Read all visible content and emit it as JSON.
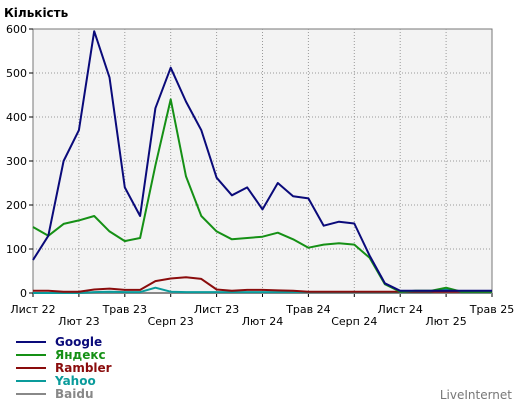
{
  "chart_data": {
    "type": "line",
    "ylabel": "Кількість",
    "ylim": [
      0,
      600
    ],
    "yticks": [
      0,
      100,
      200,
      300,
      400,
      500,
      600
    ],
    "grid": true,
    "legend_position": "bottom-left",
    "x_tick_labels": [
      {
        "label": "Лист 22",
        "index": 0
      },
      {
        "label": "Лют 23",
        "index": 3
      },
      {
        "label": "Трав 23",
        "index": 6
      },
      {
        "label": "Серп 23",
        "index": 9
      },
      {
        "label": "Лист 23",
        "index": 12
      },
      {
        "label": "Лют 24",
        "index": 15
      },
      {
        "label": "Трав 24",
        "index": 18
      },
      {
        "label": "Серп 24",
        "index": 21
      },
      {
        "label": "Лист 24",
        "index": 24
      },
      {
        "label": "Лют 25",
        "index": 27
      },
      {
        "label": "Трав 25",
        "index": 30
      }
    ],
    "series": [
      {
        "name": "Google",
        "color": "#0a0a7a",
        "values": [
          75,
          130,
          300,
          370,
          595,
          490,
          240,
          175,
          420,
          512,
          435,
          370,
          262,
          222,
          240,
          190,
          250,
          220,
          215,
          153,
          162,
          158,
          85,
          22,
          5,
          5,
          5,
          5,
          5,
          5,
          5
        ]
      },
      {
        "name": "Яндекс",
        "color": "#159015",
        "values": [
          150,
          130,
          157,
          165,
          175,
          140,
          118,
          125,
          290,
          440,
          265,
          175,
          140,
          122,
          125,
          128,
          137,
          122,
          103,
          110,
          113,
          110,
          80,
          20,
          3,
          5,
          5,
          12,
          3,
          3,
          3
        ]
      },
      {
        "name": "Rambler",
        "color": "#8a0c0c",
        "values": [
          5,
          5,
          3,
          3,
          8,
          10,
          7,
          7,
          27,
          33,
          36,
          32,
          8,
          5,
          7,
          7,
          6,
          5,
          3,
          3,
          3,
          3,
          3,
          3,
          3,
          3,
          3,
          3,
          3,
          3,
          3
        ]
      },
      {
        "name": "Yahoo",
        "color": "#0a9b9b",
        "values": [
          0,
          0,
          0,
          0,
          2,
          3,
          2,
          2,
          12,
          3,
          2,
          2,
          2,
          2,
          2,
          2,
          2,
          2,
          2,
          2,
          2,
          2,
          2,
          2,
          2,
          2,
          2,
          8,
          2,
          2,
          2
        ]
      },
      {
        "name": "Baidu",
        "color": "#888888",
        "values": [
          0,
          0,
          0,
          0,
          0,
          0,
          0,
          0,
          0,
          0,
          0,
          0,
          0,
          0,
          0,
          0,
          0,
          0,
          0,
          0,
          0,
          0,
          0,
          0,
          0,
          0,
          0,
          0,
          0,
          0,
          0
        ]
      }
    ]
  },
  "credit": "LiveInternet"
}
